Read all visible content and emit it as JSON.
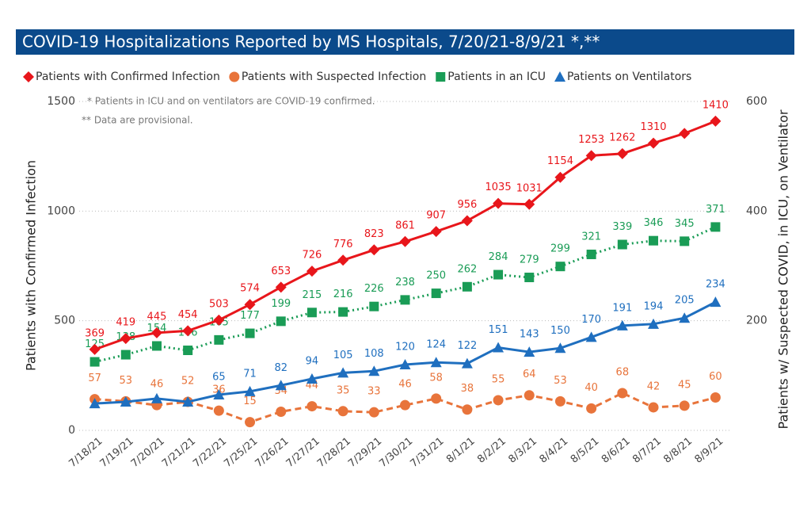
{
  "chart_data": {
    "type": "line",
    "title": "COVID-19 Hospitalizations Reported by MS Hospitals, 7/20/21-8/9/21 *,**",
    "annotations": [
      "* Patients in ICU and on ventilators are COVID-19 confirmed.",
      "** Data are provisional."
    ],
    "ylabel": "Patients with Confirmed Infection",
    "y2label": "Patients w/ Suspected COVID, in ICU, on Ventilator",
    "categories": [
      "7/18/21",
      "7/19/21",
      "7/20/21",
      "7/21/21",
      "7/22/21",
      "7/25/21",
      "7/26/21",
      "7/27/21",
      "7/28/21",
      "7/29/21",
      "7/30/21",
      "7/31/21",
      "8/1/21",
      "8/2/21",
      "8/3/21",
      "8/4/21",
      "8/5/21",
      "8/6/21",
      "8/7/21",
      "8/8/21",
      "8/9/21"
    ],
    "ylim": [
      0,
      1500
    ],
    "yticks": [
      0,
      500,
      1000,
      1500
    ],
    "y2lim": [
      0,
      600
    ],
    "y2ticks": [
      200,
      400,
      600
    ],
    "grid": true,
    "series": [
      {
        "name": "Patients with Confirmed Infection",
        "color": "#e8161b",
        "marker": "diamond",
        "dash": "solid",
        "values": [
          369,
          419,
          445,
          454,
          503,
          574,
          653,
          726,
          776,
          823,
          861,
          907,
          956,
          1035,
          1031,
          1154,
          1253,
          1262,
          1310,
          1354,
          1410
        ],
        "value_labels": [
          "369",
          "419",
          "445",
          "454",
          "503",
          "574",
          "653",
          "726",
          "776",
          "823",
          "861",
          "907",
          "956",
          "1035",
          "1031",
          "1154",
          "1253",
          "1262",
          "1310",
          null,
          "1410"
        ]
      },
      {
        "name": "Patients with Suspected Infection",
        "color": "#e8743b",
        "marker": "circle",
        "dash": "dashed",
        "axis": "y2",
        "values": [
          57,
          53,
          46,
          52,
          36,
          15,
          34,
          44,
          35,
          33,
          46,
          58,
          38,
          55,
          64,
          53,
          40,
          68,
          42,
          45,
          60
        ]
      },
      {
        "name": "Patients in an ICU",
        "color": "#1a9c56",
        "marker": "square",
        "dash": "dotted",
        "axis": "y2",
        "values": [
          125,
          138,
          154,
          146,
          165,
          177,
          199,
          215,
          216,
          226,
          238,
          250,
          262,
          284,
          279,
          299,
          321,
          339,
          346,
          345,
          371
        ]
      },
      {
        "name": "Patients on Ventilators",
        "color": "#1f6fbf",
        "marker": "triangle",
        "dash": "solid",
        "axis": "y2",
        "values": [
          49,
          52,
          58,
          52,
          65,
          71,
          82,
          94,
          105,
          108,
          120,
          124,
          122,
          151,
          143,
          150,
          170,
          191,
          194,
          205,
          234
        ],
        "value_labels": [
          null,
          null,
          null,
          null,
          "65",
          "71",
          "82",
          "94",
          "105",
          "108",
          "120",
          "124",
          "122",
          "151",
          "143",
          "150",
          "170",
          "191",
          "194",
          "205",
          "234"
        ]
      }
    ]
  }
}
